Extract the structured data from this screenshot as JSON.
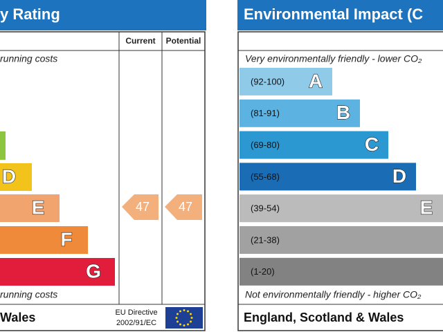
{
  "left": {
    "title": "y Rating",
    "columns": [
      "Current",
      "Potential"
    ],
    "top_note": "running costs",
    "bands": [
      {
        "letter": "D"
      },
      {
        "letter": "E"
      },
      {
        "letter": "F"
      },
      {
        "letter": "G"
      }
    ],
    "current": "47",
    "potential": "47",
    "bottom_note": "running costs",
    "footer": "Wales",
    "directive": [
      "EU Directive",
      "2002/91/EC"
    ]
  },
  "right": {
    "title": "Environmental Impact (C",
    "top_note": "Very environmentally friendly - lower CO₂",
    "bands": [
      {
        "range": "(92-100)",
        "letter": "A"
      },
      {
        "range": "(81-91)",
        "letter": "B"
      },
      {
        "range": "(69-80)",
        "letter": "C"
      },
      {
        "range": "(55-68)",
        "letter": "D"
      },
      {
        "range": "(39-54)",
        "letter": "E"
      },
      {
        "range": "(21-38)"
      },
      {
        "range": "(1-20)"
      }
    ],
    "bottom_note": "Not environmentally friendly - higher CO₂",
    "footer": "England, Scotland & Wales"
  }
}
